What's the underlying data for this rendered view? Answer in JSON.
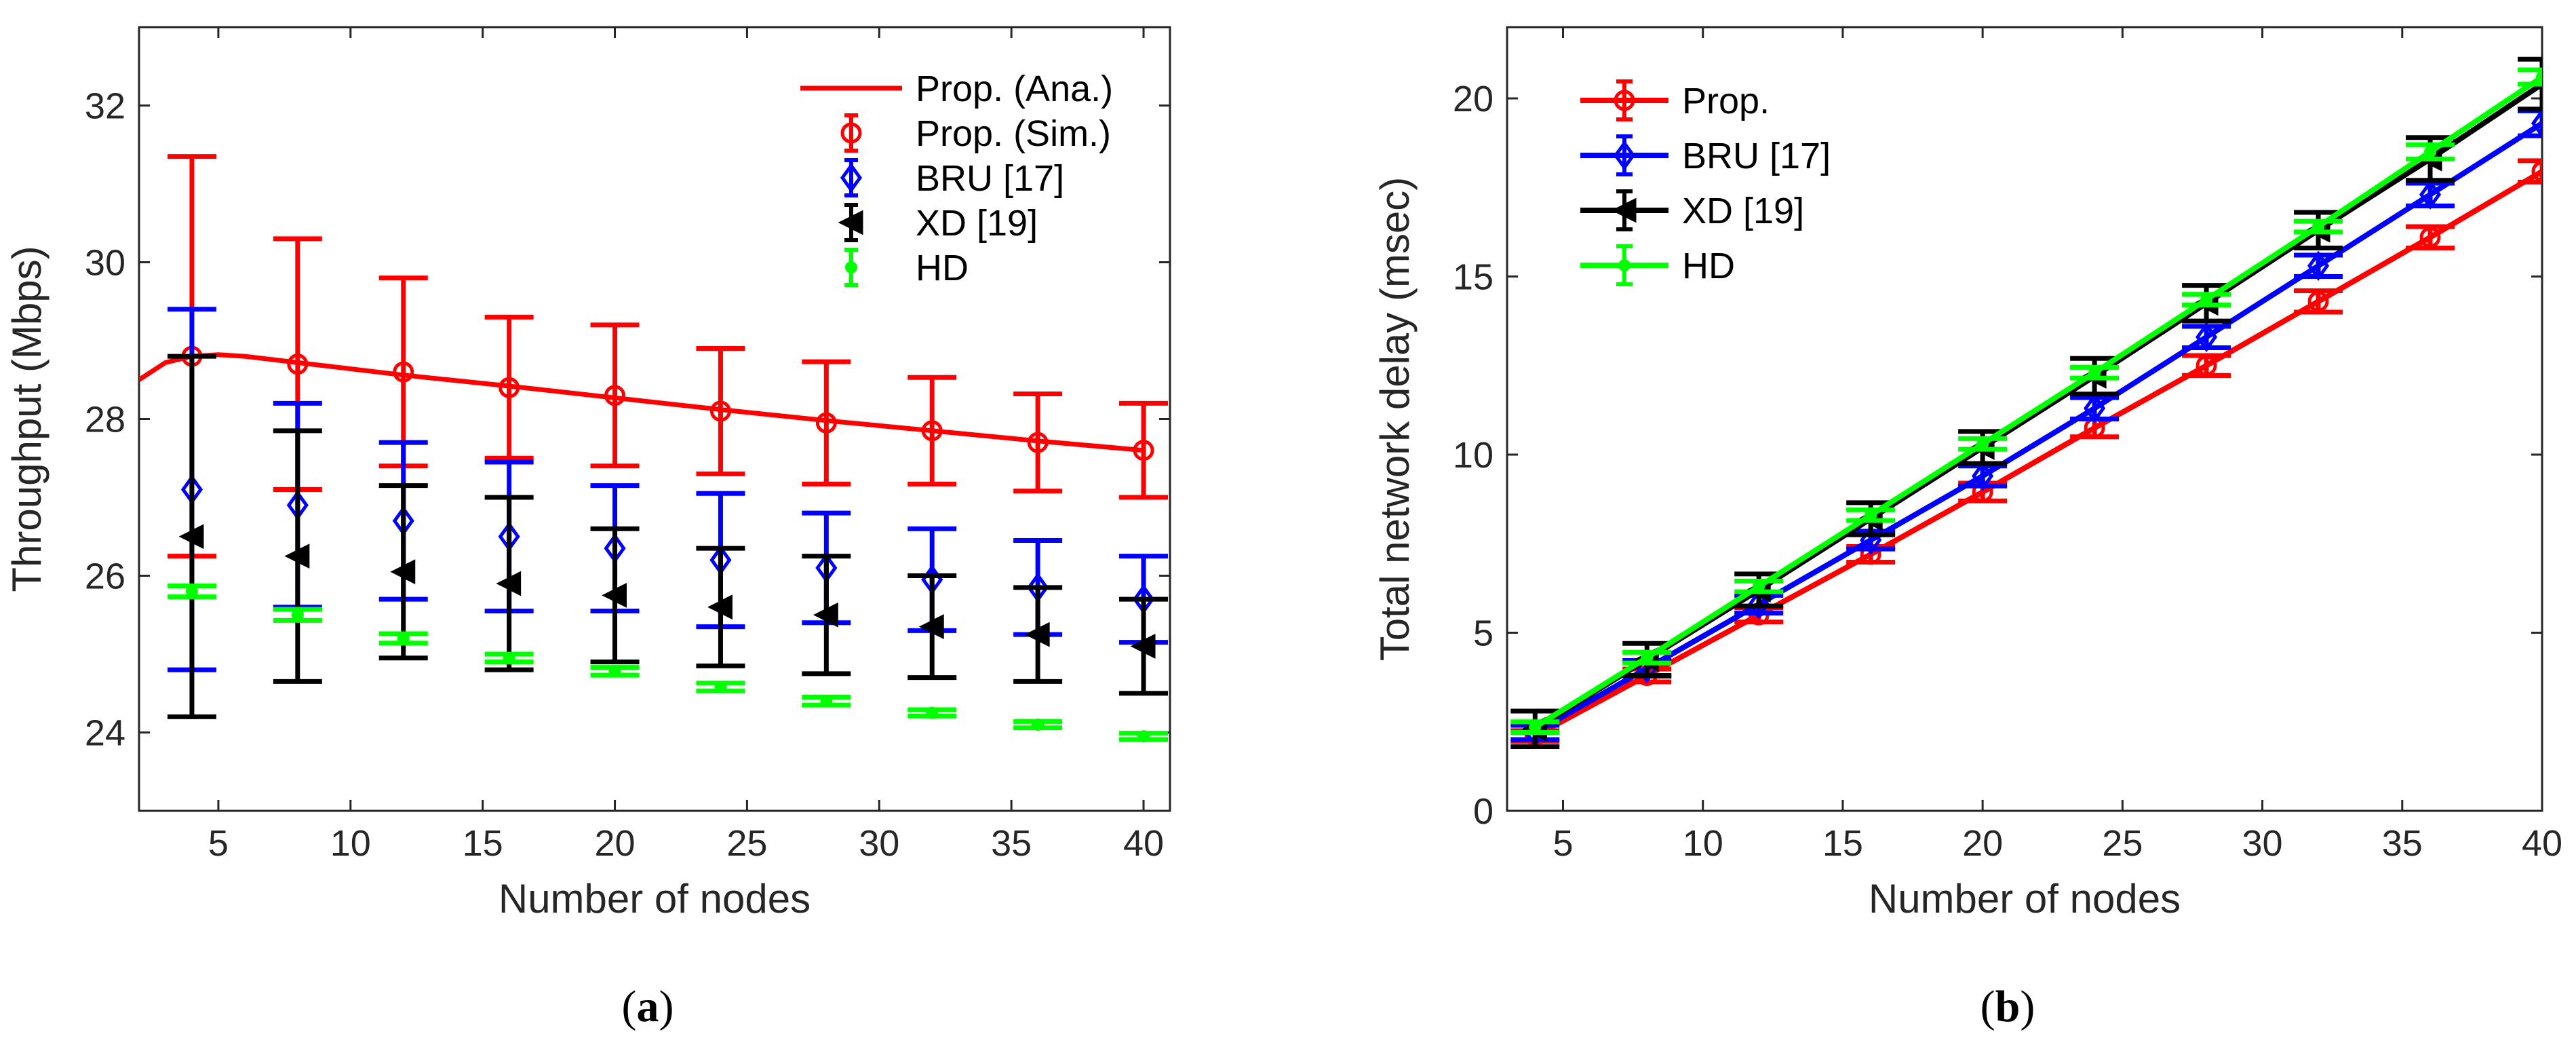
{
  "colors": {
    "prop": "#ff0000",
    "bru": "#0000ff",
    "xd": "#000000",
    "hd": "#00ff00"
  },
  "chart_data": [
    {
      "type": "line",
      "panel": "(a)",
      "panel_letter": "a",
      "xlabel": "Number of nodes",
      "ylabel": "Throughput (Mbps)",
      "xlim": [
        2,
        41
      ],
      "ylim": [
        23,
        33
      ],
      "xticks": [
        5,
        10,
        15,
        20,
        25,
        30,
        35,
        40
      ],
      "yticks": [
        24,
        26,
        28,
        30,
        32
      ],
      "grid": false,
      "legend_position": "top-right",
      "x": [
        4,
        8,
        12,
        16,
        20,
        24,
        28,
        32,
        36,
        40
      ],
      "analytic_series": {
        "name": "Prop. (Ana.)",
        "color": "#ff0000",
        "x": [
          2,
          3,
          4,
          5,
          6,
          8,
          10,
          12,
          16,
          20,
          24,
          28,
          32,
          36,
          40
        ],
        "y": [
          28.5,
          28.72,
          28.8,
          28.82,
          28.8,
          28.72,
          28.64,
          28.56,
          28.42,
          28.27,
          28.12,
          27.98,
          27.85,
          27.72,
          27.6
        ]
      },
      "series": [
        {
          "name": "Prop. (Sim.)",
          "color": "#ff0000",
          "marker": "circle",
          "y": [
            28.8,
            28.7,
            28.6,
            28.4,
            28.3,
            28.1,
            27.95,
            27.85,
            27.7,
            27.6
          ],
          "err": [
            2.55,
            1.6,
            1.2,
            0.9,
            0.9,
            0.8,
            0.78,
            0.68,
            0.62,
            0.6
          ]
        },
        {
          "name": "BRU [17]",
          "color": "#0000ff",
          "marker": "diamond",
          "y": [
            27.1,
            26.9,
            26.7,
            26.5,
            26.35,
            26.2,
            26.1,
            25.95,
            25.85,
            25.7
          ],
          "err": [
            2.3,
            1.3,
            1.0,
            0.95,
            0.8,
            0.85,
            0.7,
            0.65,
            0.6,
            0.55
          ]
        },
        {
          "name": "XD [19]",
          "color": "#000000",
          "marker": "triangle-left",
          "y": [
            26.5,
            26.25,
            26.05,
            25.9,
            25.75,
            25.6,
            25.5,
            25.35,
            25.25,
            25.1
          ],
          "err": [
            2.3,
            1.6,
            1.1,
            1.1,
            0.85,
            0.75,
            0.75,
            0.65,
            0.6,
            0.6
          ]
        },
        {
          "name": "HD",
          "color": "#00ff00",
          "marker": "dot",
          "y": [
            25.8,
            25.5,
            25.2,
            24.95,
            24.78,
            24.58,
            24.4,
            24.25,
            24.1,
            23.95
          ],
          "err": [
            0.07,
            0.07,
            0.06,
            0.05,
            0.05,
            0.05,
            0.05,
            0.04,
            0.04,
            0.04
          ]
        }
      ]
    },
    {
      "type": "line",
      "panel": "(b)",
      "panel_letter": "b",
      "xlabel": "Number of nodes",
      "ylabel": "Total network delay (msec)",
      "xlim": [
        3,
        40
      ],
      "ylim": [
        0,
        22
      ],
      "xticks": [
        5,
        10,
        15,
        20,
        25,
        30,
        35,
        40
      ],
      "yticks": [
        0,
        5,
        10,
        15,
        20
      ],
      "grid": false,
      "legend_position": "top-left",
      "x": [
        4,
        8,
        12,
        16,
        20,
        24,
        28,
        32,
        36,
        40
      ],
      "series": [
        {
          "name": "Prop.",
          "color": "#ff0000",
          "marker": "circle",
          "y": [
            2.1,
            3.8,
            5.5,
            7.2,
            8.95,
            10.75,
            12.5,
            14.3,
            16.1,
            17.95
          ],
          "err": [
            0.15,
            0.18,
            0.2,
            0.22,
            0.25,
            0.25,
            0.28,
            0.3,
            0.3,
            0.3
          ]
        },
        {
          "name": "BRU [17]",
          "color": "#0000ff",
          "marker": "diamond",
          "y": [
            2.2,
            4.0,
            5.8,
            7.6,
            9.4,
            11.3,
            13.3,
            15.3,
            17.3,
            19.3
          ],
          "err": [
            0.2,
            0.22,
            0.25,
            0.25,
            0.28,
            0.3,
            0.3,
            0.3,
            0.32,
            0.35
          ]
        },
        {
          "name": "XD [19]",
          "color": "#000000",
          "marker": "triangle-left",
          "y": [
            2.3,
            4.25,
            6.2,
            8.2,
            10.2,
            12.2,
            14.25,
            16.3,
            18.3,
            20.4
          ],
          "err": [
            0.5,
            0.45,
            0.45,
            0.45,
            0.45,
            0.5,
            0.5,
            0.5,
            0.6,
            0.7
          ]
        },
        {
          "name": "HD",
          "color": "#00ff00",
          "marker": "dot",
          "y": [
            2.35,
            4.3,
            6.3,
            8.3,
            10.3,
            12.3,
            14.35,
            16.4,
            18.5,
            20.6
          ],
          "err": [
            0.15,
            0.15,
            0.15,
            0.15,
            0.15,
            0.15,
            0.15,
            0.15,
            0.2,
            0.2
          ]
        }
      ]
    }
  ]
}
